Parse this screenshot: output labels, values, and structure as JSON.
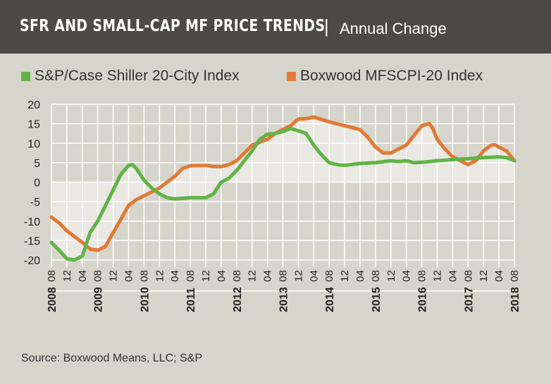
{
  "header": {
    "title": "SFR AND SMALL-CAP MF PRICE TRENDS",
    "separator": "|",
    "subtitle": "Annual Change",
    "background": "#4b4a48"
  },
  "source": "Source: Boxwood Means, LLC; S&P",
  "chart_data": {
    "type": "line",
    "title": "SFR AND SMALL-CAP MF PRICE TRENDS",
    "subtitle": "Annual Change",
    "ylim": [
      -20,
      20
    ],
    "yticks": [
      20,
      15,
      10,
      5,
      0,
      -5,
      -10,
      -15,
      -20
    ],
    "ytick_labels": [
      "20",
      "15",
      "10",
      "5",
      "0",
      "-5",
      "-10",
      "-15",
      "-20"
    ],
    "xlim": [
      "2008-08",
      "2018-08"
    ],
    "month_tick_labels": [
      "08",
      "12",
      "04",
      "08",
      "12",
      "04",
      "08",
      "12",
      "04",
      "08",
      "12",
      "04",
      "08",
      "12",
      "04",
      "08",
      "12",
      "04",
      "08",
      "12",
      "04",
      "08",
      "12",
      "04",
      "08",
      "12",
      "04",
      "08",
      "12",
      "04",
      "08"
    ],
    "year_labels": [
      "2008",
      "2009",
      "2010",
      "2011",
      "2012",
      "2013",
      "2014",
      "2015",
      "2016",
      "2017",
      "2018"
    ],
    "grid": true,
    "legend": "top",
    "series": [
      {
        "name": "S&P/Case Shiller 20-City Index",
        "color": "#62b346",
        "x": [
          "2008-08",
          "2008-10",
          "2008-12",
          "2009-02",
          "2009-04",
          "2009-06",
          "2009-08",
          "2009-10",
          "2009-12",
          "2010-02",
          "2010-04",
          "2010-05",
          "2010-06",
          "2010-08",
          "2010-10",
          "2010-12",
          "2011-02",
          "2011-04",
          "2011-08",
          "2011-12",
          "2012-02",
          "2012-04",
          "2012-06",
          "2012-08",
          "2012-10",
          "2012-12",
          "2013-02",
          "2013-04",
          "2013-06",
          "2013-08",
          "2013-10",
          "2013-12",
          "2014-02",
          "2014-04",
          "2014-06",
          "2014-08",
          "2014-10",
          "2014-12",
          "2015-04",
          "2015-08",
          "2015-12",
          "2016-02",
          "2016-04",
          "2016-06",
          "2016-08",
          "2016-12",
          "2017-04",
          "2017-08",
          "2017-12",
          "2018-04",
          "2018-06",
          "2018-08"
        ],
        "y": [
          -15.5,
          -17.5,
          -19.7,
          -20,
          -19,
          -13,
          -10,
          -6,
          -2,
          2,
          4.3,
          4.5,
          3.5,
          0.5,
          -1.5,
          -3,
          -4,
          -4.3,
          -4,
          -4,
          -3,
          0,
          1,
          3,
          5.5,
          8,
          11,
          12.3,
          12.5,
          13,
          13.8,
          13.2,
          12.5,
          9.5,
          7,
          5,
          4.5,
          4.3,
          4.8,
          5,
          5.5,
          5.3,
          5.5,
          5,
          5.1,
          5.5,
          5.8,
          6,
          6.3,
          6.5,
          6.3,
          5.5
        ]
      },
      {
        "name": "Boxwood MFSCPI-20 Index",
        "color": "#e07a36",
        "x": [
          "2008-08",
          "2008-10",
          "2008-12",
          "2009-02",
          "2009-04",
          "2009-06",
          "2009-08",
          "2009-10",
          "2009-12",
          "2010-02",
          "2010-04",
          "2010-06",
          "2010-08",
          "2010-10",
          "2010-12",
          "2011-02",
          "2011-04",
          "2011-06",
          "2011-08",
          "2011-12",
          "2012-02",
          "2012-04",
          "2012-06",
          "2012-08",
          "2012-10",
          "2012-12",
          "2013-02",
          "2013-04",
          "2013-06",
          "2013-08",
          "2013-10",
          "2013-12",
          "2014-02",
          "2014-04",
          "2014-08",
          "2014-12",
          "2015-04",
          "2015-06",
          "2015-08",
          "2015-10",
          "2015-12",
          "2016-02",
          "2016-04",
          "2016-06",
          "2016-08",
          "2016-10",
          "2016-11",
          "2016-12",
          "2017-02",
          "2017-04",
          "2017-06",
          "2017-08",
          "2017-10",
          "2017-12",
          "2018-02",
          "2018-03",
          "2018-04",
          "2018-06",
          "2018-08"
        ],
        "y": [
          -9,
          -10.5,
          -12.5,
          -14,
          -15.5,
          -17.2,
          -17.5,
          -16.5,
          -13,
          -9.5,
          -6,
          -4.5,
          -3.5,
          -2.5,
          -1.5,
          0,
          1.5,
          3.5,
          4.2,
          4.3,
          4,
          4,
          4.5,
          5.5,
          7.5,
          9.5,
          10.3,
          11,
          12.5,
          13.5,
          14.5,
          16.2,
          16.3,
          16.7,
          15.5,
          14.5,
          13.5,
          11.5,
          9,
          7.5,
          7.5,
          8.5,
          9.5,
          12,
          14.5,
          15,
          13.5,
          11,
          8.5,
          6.5,
          5.5,
          4.5,
          5.5,
          8,
          9.5,
          9.6,
          9,
          8,
          5.5
        ]
      }
    ]
  },
  "colors": {
    "background": "#d6d5cb",
    "shade": "#e9e8e3",
    "grid": "#ffffff"
  }
}
